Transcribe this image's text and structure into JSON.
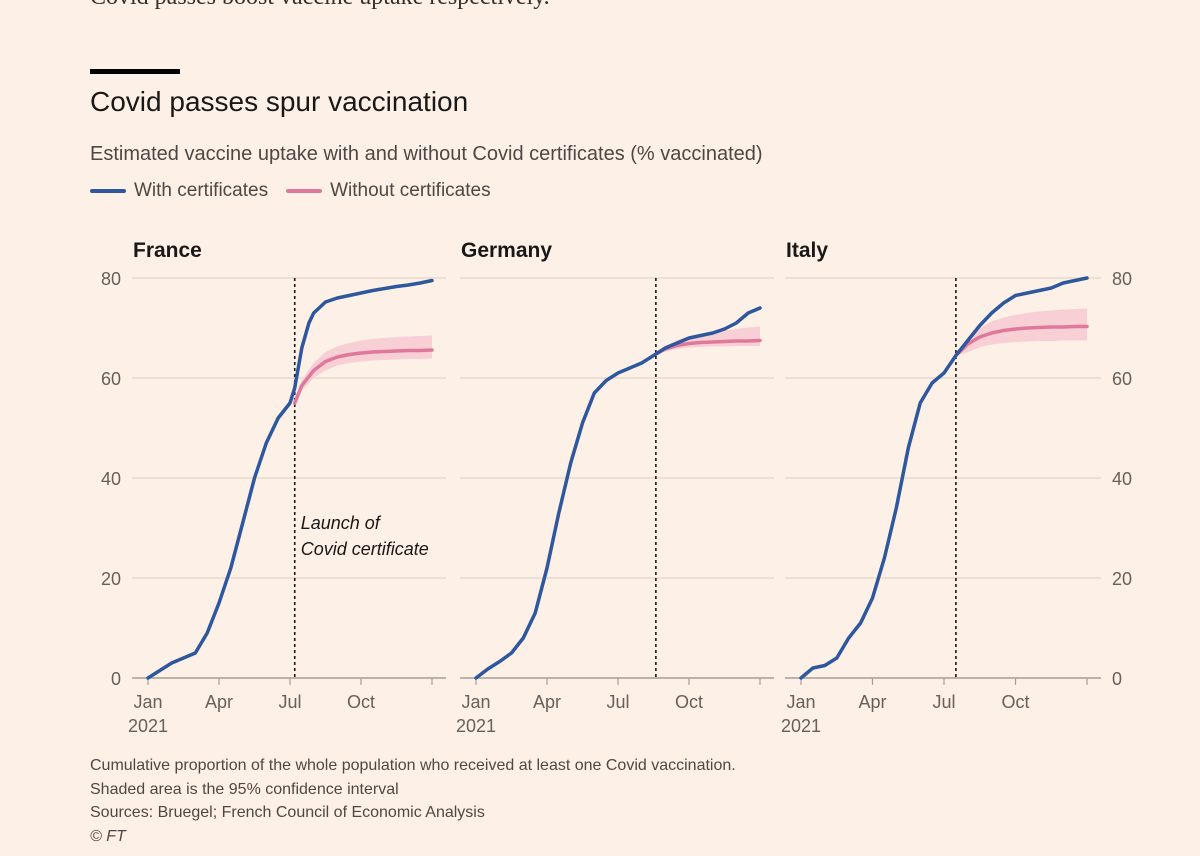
{
  "header": {
    "cut_text": "Covid passes boost vaccine uptake respectively.",
    "title": "Covid passes spur vaccination",
    "subtitle": "Estimated vaccine uptake with and without Covid certificates (% vaccinated)"
  },
  "legend": [
    {
      "label": "With certificates",
      "color": "#2e579e"
    },
    {
      "label": "Without certificates",
      "color": "#e0789c"
    }
  ],
  "footer": {
    "note1": "Cumulative proportion of the whole population who received at least one Covid vaccination.",
    "note2": "Shaded area is the 95% confidence interval",
    "sources": "Sources: Bruegel; French Council of Economic Analysis",
    "credit": "© FT"
  },
  "chart_data": [
    {
      "type": "line",
      "title": "France",
      "ylim": [
        0,
        80
      ],
      "yticks": [
        0,
        20,
        40,
        60,
        80
      ],
      "xticks": [
        "Jan",
        "Apr",
        "Jul",
        "Oct"
      ],
      "xtick_year": "2021",
      "event": {
        "month": 6.2,
        "label_lines": [
          "Launch of",
          "Covid certificate"
        ]
      },
      "series": [
        {
          "name": "With certificates",
          "x": [
            0,
            0.5,
            1,
            1.5,
            2,
            2.5,
            3,
            3.5,
            4,
            4.5,
            5,
            5.5,
            6,
            6.2,
            6.5,
            6.8,
            7,
            7.5,
            8,
            8.5,
            9,
            9.5,
            10,
            10.5,
            11,
            11.5,
            12
          ],
          "y": [
            0,
            1.5,
            3,
            4,
            5,
            9,
            15,
            22,
            31,
            40,
            47,
            52,
            55,
            58,
            66,
            71,
            73,
            75.2,
            76,
            76.5,
            77,
            77.5,
            77.9,
            78.3,
            78.6,
            79,
            79.5
          ]
        },
        {
          "name": "Without certificates",
          "x": [
            6.2,
            6.5,
            7,
            7.5,
            8,
            8.5,
            9,
            9.5,
            10,
            10.5,
            11,
            11.5,
            12
          ],
          "y": [
            55,
            58.5,
            61.5,
            63.3,
            64.2,
            64.7,
            65,
            65.2,
            65.3,
            65.4,
            65.5,
            65.5,
            65.6
          ],
          "ci_low": [
            55,
            57.5,
            60,
            61.5,
            62.5,
            63,
            63.3,
            63.5,
            63.6,
            63.7,
            63.8,
            63.8,
            63.9
          ],
          "ci_high": [
            55,
            59.5,
            63,
            65.2,
            66.3,
            67,
            67.5,
            67.8,
            68,
            68.2,
            68.3,
            68.4,
            68.5
          ]
        }
      ]
    },
    {
      "type": "line",
      "title": "Germany",
      "ylim": [
        0,
        80
      ],
      "yticks": [
        0,
        20,
        40,
        60,
        80
      ],
      "xticks": [
        "Jan",
        "Apr",
        "Jul",
        "Oct"
      ],
      "xtick_year": "2021",
      "event": {
        "month": 7.6
      },
      "series": [
        {
          "name": "With certificates",
          "x": [
            0,
            0.5,
            1,
            1.5,
            2,
            2.5,
            3,
            3.5,
            4,
            4.5,
            5,
            5.5,
            6,
            6.5,
            7,
            7.6,
            8,
            8.5,
            9,
            9.5,
            10,
            10.5,
            11,
            11.5,
            12
          ],
          "y": [
            0,
            1.8,
            3.3,
            5,
            8,
            13,
            22,
            33,
            43,
            51,
            57,
            59.5,
            61,
            62,
            63,
            64.8,
            66,
            67,
            68,
            68.5,
            69,
            69.8,
            71,
            73,
            74
          ]
        },
        {
          "name": "Without certificates",
          "x": [
            7.6,
            8,
            8.5,
            9,
            9.5,
            10,
            10.5,
            11,
            11.5,
            12
          ],
          "y": [
            64.8,
            65.8,
            66.5,
            66.9,
            67.1,
            67.2,
            67.3,
            67.4,
            67.4,
            67.5
          ],
          "ci_low": [
            64.8,
            65.3,
            65.8,
            66.1,
            66.2,
            66.3,
            66.3,
            66.4,
            66.4,
            66.4
          ],
          "ci_high": [
            64.8,
            66.4,
            67.6,
            68.3,
            68.8,
            69.2,
            69.5,
            69.8,
            70.1,
            70.3
          ]
        }
      ]
    },
    {
      "type": "line",
      "title": "Italy",
      "ylim": [
        0,
        80
      ],
      "yticks": [
        0,
        20,
        40,
        60,
        80
      ],
      "xticks": [
        "Jan",
        "Apr",
        "Jul",
        "Oct"
      ],
      "xtick_year": "2021",
      "event": {
        "month": 6.5
      },
      "series": [
        {
          "name": "With certificates",
          "x": [
            0,
            0.5,
            1,
            1.5,
            2,
            2.5,
            3,
            3.5,
            4,
            4.5,
            5,
            5.5,
            6,
            6.5,
            7,
            7.5,
            8,
            8.5,
            9,
            9.5,
            10,
            10.5,
            11,
            11.5,
            12
          ],
          "y": [
            0,
            2,
            2.5,
            4,
            8,
            11,
            16,
            24,
            34,
            46,
            55,
            59,
            61,
            64.5,
            67.5,
            70.5,
            73,
            75,
            76.5,
            77,
            77.5,
            78,
            79,
            79.5,
            80
          ]
        },
        {
          "name": "Without certificates",
          "x": [
            6.5,
            7,
            7.5,
            8,
            8.5,
            9,
            9.5,
            10,
            10.5,
            11,
            11.5,
            12
          ],
          "y": [
            64.5,
            66.8,
            68.2,
            69,
            69.5,
            69.8,
            70,
            70.1,
            70.2,
            70.2,
            70.3,
            70.3
          ],
          "ci_low": [
            64.5,
            65.2,
            66.2,
            66.7,
            67,
            67.2,
            67.3,
            67.4,
            67.4,
            67.5,
            67.5,
            67.5
          ],
          "ci_high": [
            64.5,
            68.2,
            70,
            71.3,
            72.1,
            72.6,
            73,
            73.3,
            73.5,
            73.7,
            73.8,
            73.9
          ]
        }
      ]
    }
  ]
}
